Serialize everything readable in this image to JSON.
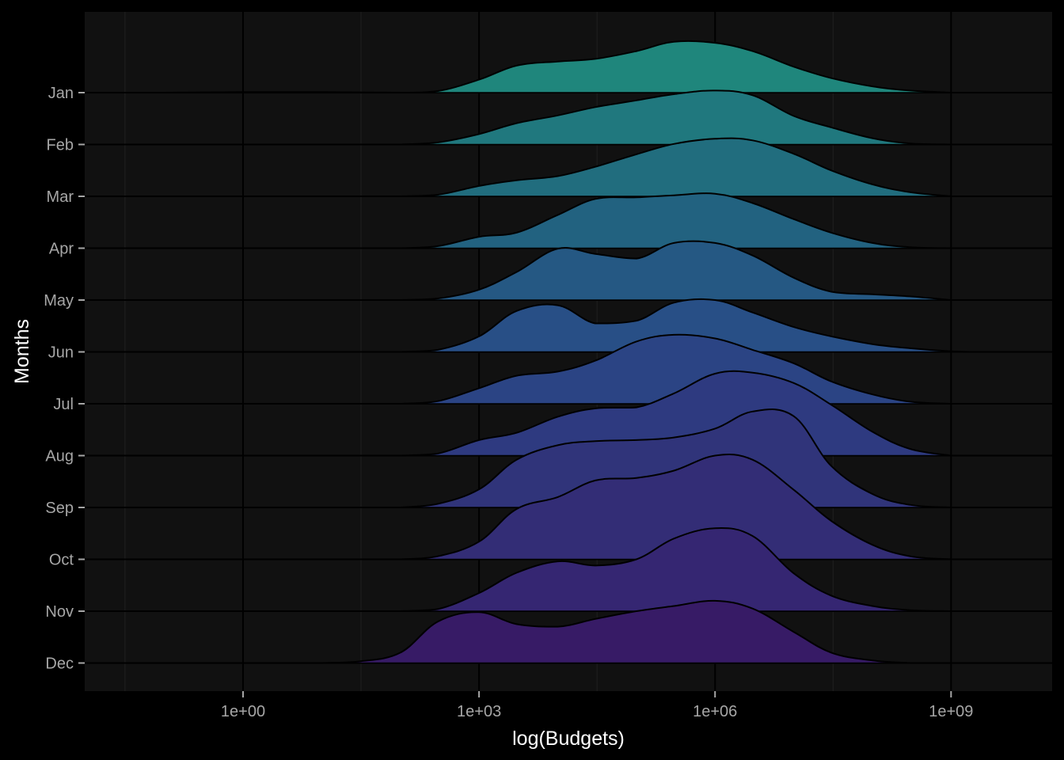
{
  "chart_data": {
    "type": "ridgeline",
    "xlabel": "log(Budgets)",
    "ylabel": "Months",
    "x_scale": "log10",
    "xlim": [
      0.01,
      10000000000.0
    ],
    "x_ticks": [
      {
        "value": 1,
        "label": "1e+00"
      },
      {
        "value": 1000,
        "label": "1e+03"
      },
      {
        "value": 1000000,
        "label": "1e+06"
      },
      {
        "value": 1000000000,
        "label": "1e+09"
      }
    ],
    "categories": [
      "Jan",
      "Feb",
      "Mar",
      "Apr",
      "May",
      "Jun",
      "Jul",
      "Aug",
      "Sep",
      "Oct",
      "Nov",
      "Dec"
    ],
    "fill_colors": [
      "#1f867c",
      "#20787e",
      "#216d7e",
      "#226280",
      "#255883",
      "#284f86",
      "#2b4484",
      "#2e3a80",
      "#30347a",
      "#332d76",
      "#352672",
      "#371b66"
    ],
    "background": "#111111",
    "grid": true,
    "series": [
      {
        "name": "Jan",
        "points": [
          [
            0.1,
            0
          ],
          [
            1,
            0.01
          ],
          [
            10,
            0.01
          ],
          [
            100,
            0
          ],
          [
            300,
            0.03
          ],
          [
            1000,
            0.25
          ],
          [
            3000,
            0.52
          ],
          [
            10000,
            0.6
          ],
          [
            30000,
            0.65
          ],
          [
            100000,
            0.8
          ],
          [
            300000,
            0.98
          ],
          [
            1000000,
            0.96
          ],
          [
            3000000,
            0.8
          ],
          [
            10000000,
            0.5
          ],
          [
            30000000,
            0.28
          ],
          [
            100000000,
            0.12
          ],
          [
            300000000,
            0.04
          ],
          [
            1000000000,
            0
          ]
        ]
      },
      {
        "name": "Feb",
        "points": [
          [
            100,
            0
          ],
          [
            300,
            0.04
          ],
          [
            1000,
            0.2
          ],
          [
            3000,
            0.41
          ],
          [
            10000,
            0.56
          ],
          [
            30000,
            0.72
          ],
          [
            100000,
            0.85
          ],
          [
            300000,
            0.97
          ],
          [
            1000000,
            1.04
          ],
          [
            3000000,
            0.95
          ],
          [
            10000000,
            0.55
          ],
          [
            30000000,
            0.33
          ],
          [
            100000000,
            0.12
          ],
          [
            300000000,
            0.02
          ],
          [
            1000000000,
            0
          ]
        ]
      },
      {
        "name": "Mar",
        "points": [
          [
            100,
            0
          ],
          [
            300,
            0.03
          ],
          [
            1000,
            0.2
          ],
          [
            3000,
            0.31
          ],
          [
            10000,
            0.39
          ],
          [
            30000,
            0.57
          ],
          [
            100000,
            0.81
          ],
          [
            300000,
            1.01
          ],
          [
            1000000,
            1.11
          ],
          [
            3000000,
            1.08
          ],
          [
            10000000,
            0.82
          ],
          [
            30000000,
            0.5
          ],
          [
            100000000,
            0.23
          ],
          [
            300000000,
            0.08
          ],
          [
            1000000000,
            0
          ]
        ]
      },
      {
        "name": "Apr",
        "points": [
          [
            100,
            0
          ],
          [
            300,
            0.04
          ],
          [
            1000,
            0.22
          ],
          [
            3000,
            0.3
          ],
          [
            10000,
            0.64
          ],
          [
            30000,
            0.95
          ],
          [
            100000,
            0.98
          ],
          [
            300000,
            1.02
          ],
          [
            1000000,
            1.05
          ],
          [
            3000000,
            0.87
          ],
          [
            10000000,
            0.56
          ],
          [
            30000000,
            0.3
          ],
          [
            100000000,
            0.1
          ],
          [
            300000000,
            0.02
          ],
          [
            1000000000,
            0
          ]
        ]
      },
      {
        "name": "May",
        "points": [
          [
            100,
            0
          ],
          [
            300,
            0.03
          ],
          [
            1000,
            0.2
          ],
          [
            3000,
            0.54
          ],
          [
            10000,
            0.99
          ],
          [
            30000,
            0.89
          ],
          [
            100000,
            0.8
          ],
          [
            300000,
            1.1
          ],
          [
            1000000,
            1.1
          ],
          [
            3000000,
            0.86
          ],
          [
            10000000,
            0.43
          ],
          [
            30000000,
            0.16
          ],
          [
            100000000,
            0.11
          ],
          [
            300000000,
            0.07
          ],
          [
            1000000000,
            0
          ]
        ]
      },
      {
        "name": "Jun",
        "points": [
          [
            100,
            0
          ],
          [
            300,
            0.04
          ],
          [
            1000,
            0.3
          ],
          [
            3000,
            0.79
          ],
          [
            10000,
            0.9
          ],
          [
            30000,
            0.55
          ],
          [
            100000,
            0.6
          ],
          [
            300000,
            0.95
          ],
          [
            1000000,
            1.0
          ],
          [
            3000000,
            0.76
          ],
          [
            10000000,
            0.48
          ],
          [
            30000000,
            0.3
          ],
          [
            100000000,
            0.15
          ],
          [
            300000000,
            0.07
          ],
          [
            1000000000,
            0.01
          ],
          [
            2000000000,
            0
          ]
        ]
      },
      {
        "name": "Jul",
        "points": [
          [
            100,
            0
          ],
          [
            300,
            0.05
          ],
          [
            1000,
            0.3
          ],
          [
            3000,
            0.54
          ],
          [
            10000,
            0.62
          ],
          [
            30000,
            0.83
          ],
          [
            100000,
            1.2
          ],
          [
            300000,
            1.33
          ],
          [
            1000000,
            1.26
          ],
          [
            3000000,
            1.04
          ],
          [
            10000000,
            0.78
          ],
          [
            30000000,
            0.43
          ],
          [
            100000000,
            0.18
          ],
          [
            300000000,
            0.04
          ],
          [
            1000000000,
            0
          ]
        ]
      },
      {
        "name": "Aug",
        "points": [
          [
            100,
            0
          ],
          [
            300,
            0.04
          ],
          [
            1000,
            0.3
          ],
          [
            3000,
            0.44
          ],
          [
            10000,
            0.75
          ],
          [
            30000,
            0.91
          ],
          [
            100000,
            0.93
          ],
          [
            300000,
            1.2
          ],
          [
            1000000,
            1.58
          ],
          [
            3000000,
            1.6
          ],
          [
            10000000,
            1.4
          ],
          [
            30000000,
            0.98
          ],
          [
            100000000,
            0.46
          ],
          [
            300000000,
            0.13
          ],
          [
            1000000000,
            0
          ]
        ]
      },
      {
        "name": "Sep",
        "points": [
          [
            100,
            0
          ],
          [
            300,
            0.07
          ],
          [
            1000,
            0.35
          ],
          [
            3000,
            0.92
          ],
          [
            10000,
            1.2
          ],
          [
            30000,
            1.28
          ],
          [
            100000,
            1.3
          ],
          [
            300000,
            1.35
          ],
          [
            1000000,
            1.52
          ],
          [
            3000000,
            1.85
          ],
          [
            10000000,
            1.76
          ],
          [
            30000000,
            0.8
          ],
          [
            100000000,
            0.26
          ],
          [
            300000000,
            0.05
          ],
          [
            1000000000,
            0
          ]
        ]
      },
      {
        "name": "Oct",
        "points": [
          [
            100,
            0
          ],
          [
            300,
            0.06
          ],
          [
            1000,
            0.34
          ],
          [
            3000,
            0.97
          ],
          [
            10000,
            1.2
          ],
          [
            30000,
            1.52
          ],
          [
            100000,
            1.57
          ],
          [
            300000,
            1.71
          ],
          [
            1000000,
            2.0
          ],
          [
            3000000,
            1.92
          ],
          [
            10000000,
            1.34
          ],
          [
            30000000,
            0.74
          ],
          [
            100000000,
            0.28
          ],
          [
            300000000,
            0.06
          ],
          [
            1000000000,
            0
          ]
        ]
      },
      {
        "name": "Nov",
        "points": [
          [
            100,
            0
          ],
          [
            300,
            0.04
          ],
          [
            1000,
            0.35
          ],
          [
            3000,
            0.74
          ],
          [
            10000,
            0.96
          ],
          [
            30000,
            0.88
          ],
          [
            100000,
            1.0
          ],
          [
            300000,
            1.4
          ],
          [
            1000000,
            1.6
          ],
          [
            3000000,
            1.45
          ],
          [
            10000000,
            0.73
          ],
          [
            30000000,
            0.3
          ],
          [
            100000000,
            0.1
          ],
          [
            300000000,
            0.02
          ],
          [
            1000000000,
            0
          ]
        ]
      },
      {
        "name": "Dec",
        "points": [
          [
            10,
            0
          ],
          [
            30,
            0.03
          ],
          [
            100,
            0.2
          ],
          [
            300,
            0.8
          ],
          [
            1000,
            0.98
          ],
          [
            3000,
            0.75
          ],
          [
            10000,
            0.7
          ],
          [
            30000,
            0.85
          ],
          [
            100000,
            1.0
          ],
          [
            300000,
            1.1
          ],
          [
            1000000,
            1.2
          ],
          [
            3000000,
            1.05
          ],
          [
            10000000,
            0.6
          ],
          [
            30000000,
            0.2
          ],
          [
            100000000,
            0.05
          ],
          [
            300000000,
            0
          ]
        ]
      }
    ]
  }
}
